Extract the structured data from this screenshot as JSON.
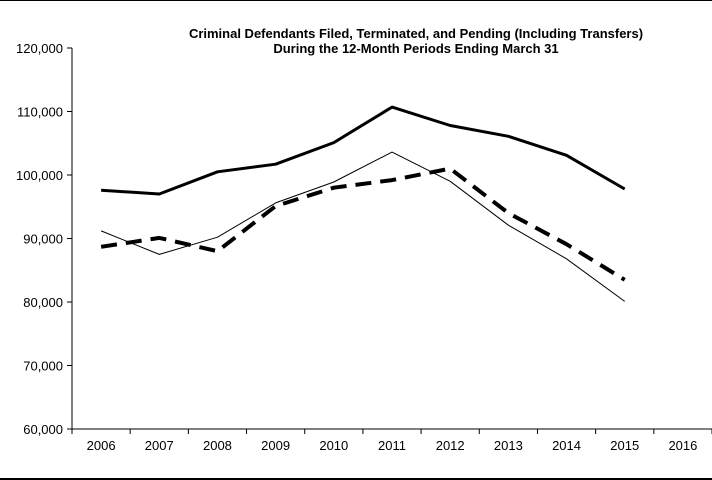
{
  "chart_data": {
    "type": "line",
    "title_line1": "Criminal Defendants Filed, Terminated, and Pending (Including Transfers)",
    "title_line2": "During the 12-Month Periods Ending March 31",
    "xlabel": "",
    "ylabel": "",
    "categories": [
      "2006",
      "2007",
      "2008",
      "2009",
      "2010",
      "2011",
      "2012",
      "2013",
      "2014",
      "2015",
      "2016"
    ],
    "ylim": [
      60000,
      120000
    ],
    "yticks": [
      60000,
      70000,
      80000,
      90000,
      100000,
      110000,
      120000
    ],
    "ytick_labels": [
      "60,000",
      "70,000",
      "80,000",
      "90,000",
      "100,000",
      "110,000",
      "120,000"
    ],
    "grid": false,
    "legend": "none",
    "series": [
      {
        "style": "thick-solid",
        "color": "#000000",
        "values": [
          97600,
          97000,
          100500,
          101700,
          105100,
          110700,
          107800,
          106100,
          103100,
          97800,
          null
        ]
      },
      {
        "style": "thin-solid",
        "color": "#000000",
        "values": [
          91200,
          87500,
          90200,
          95600,
          98900,
          103600,
          99000,
          92100,
          86800,
          80100,
          null
        ]
      },
      {
        "style": "thick-dashed",
        "color": "#000000",
        "values": [
          88700,
          90100,
          88000,
          95100,
          98000,
          99200,
          101000,
          94000,
          89100,
          83500,
          null
        ]
      }
    ]
  }
}
